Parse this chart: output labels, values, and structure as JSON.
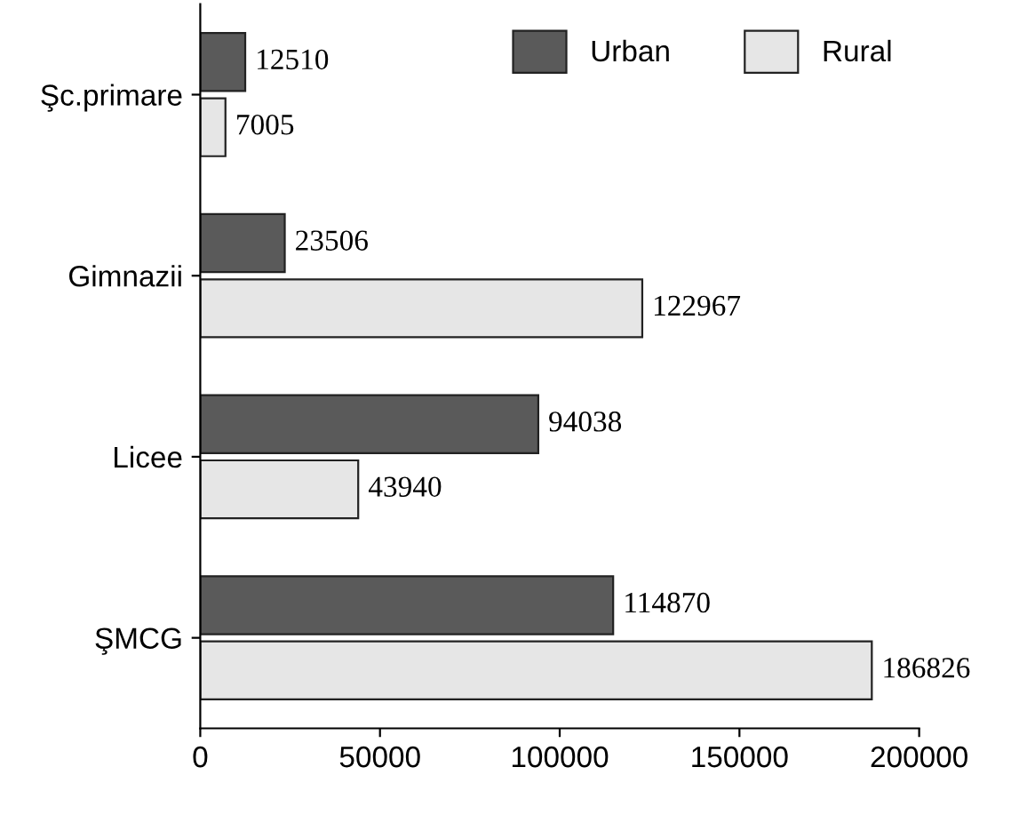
{
  "chart_data": {
    "type": "bar",
    "orientation": "horizontal",
    "categories": [
      "Şc.primare",
      "Gimnazii",
      "Licee",
      "ŞMCG"
    ],
    "series": [
      {
        "name": "Urban",
        "color": "#5a5a5a",
        "values": [
          12510,
          23506,
          94038,
          114870
        ]
      },
      {
        "name": "Rural",
        "color": "#e6e6e6",
        "values": [
          7005,
          122967,
          43940,
          186826
        ]
      }
    ],
    "xlim": [
      0,
      200000
    ],
    "xticks": [
      0,
      50000,
      100000,
      150000,
      200000
    ],
    "data_labels": true,
    "legend": "top right",
    "grid": false
  }
}
